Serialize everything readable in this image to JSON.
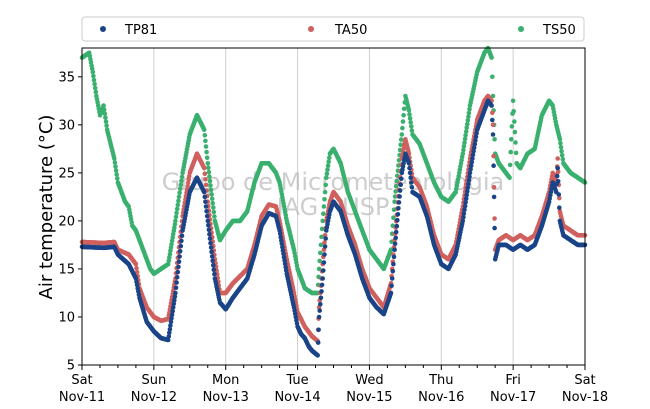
{
  "chart_data": {
    "type": "scatter",
    "ylabel": "Air temperature (°C)",
    "xlabel": "",
    "ylim": [
      5,
      38
    ],
    "xlim": [
      0,
      7
    ],
    "yticks": [
      5,
      10,
      15,
      20,
      25,
      30,
      35
    ],
    "xticks": [
      {
        "x": 0,
        "day": "Sat",
        "date": "Nov-11"
      },
      {
        "x": 1,
        "day": "Sun",
        "date": "Nov-12"
      },
      {
        "x": 2,
        "day": "Mon",
        "date": "Nov-13"
      },
      {
        "x": 3,
        "day": "Tue",
        "date": "Nov-14"
      },
      {
        "x": 4,
        "day": "Wed",
        "date": "Nov-15"
      },
      {
        "x": 5,
        "day": "Thu",
        "date": "Nov-16"
      },
      {
        "x": 6,
        "day": "Fri",
        "date": "Nov-17"
      },
      {
        "x": 7,
        "day": "Sat",
        "date": "Nov-18"
      }
    ],
    "grid": "vertical",
    "legend_position": "top",
    "watermark": [
      "Grupo de Micrometeorologia",
      "IAG - USP"
    ],
    "series": [
      {
        "name": "TP81",
        "color": "#1a4488",
        "points": [
          [
            0.0,
            17.3
          ],
          [
            0.3,
            17.2
          ],
          [
            0.45,
            17.3
          ],
          [
            0.5,
            16.5
          ],
          [
            0.65,
            15.5
          ],
          [
            0.75,
            14.0
          ],
          [
            0.8,
            12.0
          ],
          [
            0.9,
            9.5
          ],
          [
            1.0,
            8.5
          ],
          [
            1.1,
            7.8
          ],
          [
            1.2,
            7.6
          ],
          [
            1.3,
            12.5
          ],
          [
            1.4,
            19.0
          ],
          [
            1.5,
            23.0
          ],
          [
            1.6,
            24.5
          ],
          [
            1.7,
            23.0
          ],
          [
            1.75,
            20.0
          ],
          [
            1.85,
            14.0
          ],
          [
            1.92,
            11.5
          ],
          [
            2.0,
            10.8
          ],
          [
            2.1,
            12.0
          ],
          [
            2.3,
            14.0
          ],
          [
            2.4,
            16.5
          ],
          [
            2.5,
            19.5
          ],
          [
            2.6,
            20.8
          ],
          [
            2.7,
            20.5
          ],
          [
            2.75,
            19.0
          ],
          [
            2.85,
            14.5
          ],
          [
            2.95,
            11.0
          ],
          [
            3.0,
            9.0
          ],
          [
            3.05,
            8.2
          ],
          [
            3.1,
            7.8
          ],
          [
            3.15,
            7.0
          ],
          [
            3.2,
            6.5
          ],
          [
            3.28,
            6.0
          ],
          [
            3.3,
            10.0
          ],
          [
            3.35,
            14.0
          ],
          [
            3.4,
            19.0
          ],
          [
            3.45,
            21.0
          ],
          [
            3.5,
            22.0
          ],
          [
            3.6,
            21.0
          ],
          [
            3.7,
            18.5
          ],
          [
            3.8,
            16.5
          ],
          [
            3.9,
            14.0
          ],
          [
            4.0,
            12.0
          ],
          [
            4.1,
            11.0
          ],
          [
            4.2,
            10.3
          ],
          [
            4.3,
            12.5
          ],
          [
            4.35,
            17.0
          ],
          [
            4.45,
            25.0
          ],
          [
            4.5,
            27.0
          ],
          [
            4.55,
            26.0
          ],
          [
            4.6,
            23.0
          ],
          [
            4.7,
            22.5
          ],
          [
            4.8,
            20.5
          ],
          [
            4.9,
            17.5
          ],
          [
            5.0,
            15.5
          ],
          [
            5.1,
            15.0
          ],
          [
            5.2,
            16.5
          ],
          [
            5.3,
            20.0
          ],
          [
            5.4,
            25.0
          ],
          [
            5.5,
            29.5
          ],
          [
            5.6,
            31.5
          ],
          [
            5.65,
            32.5
          ],
          [
            5.7,
            32.0
          ],
          [
            5.72,
            29.0
          ],
          [
            5.75,
            16.0
          ],
          [
            5.8,
            17.5
          ],
          [
            5.9,
            17.5
          ],
          [
            6.0,
            17.0
          ],
          [
            6.1,
            17.5
          ],
          [
            6.2,
            17.0
          ],
          [
            6.3,
            17.5
          ],
          [
            6.4,
            19.5
          ],
          [
            6.5,
            22.0
          ],
          [
            6.55,
            24.0
          ],
          [
            6.6,
            23.0
          ],
          [
            6.62,
            25.5
          ],
          [
            6.65,
            20.0
          ],
          [
            6.7,
            18.5
          ],
          [
            6.8,
            18.0
          ],
          [
            6.9,
            17.5
          ],
          [
            7.0,
            17.5
          ]
        ]
      },
      {
        "name": "TA50",
        "color": "#d0605e",
        "points": [
          [
            0.0,
            17.8
          ],
          [
            0.3,
            17.7
          ],
          [
            0.45,
            17.8
          ],
          [
            0.5,
            17.0
          ],
          [
            0.65,
            16.5
          ],
          [
            0.75,
            15.5
          ],
          [
            0.8,
            13.0
          ],
          [
            0.9,
            11.0
          ],
          [
            1.0,
            10.0
          ],
          [
            1.1,
            9.6
          ],
          [
            1.2,
            9.8
          ],
          [
            1.3,
            14.0
          ],
          [
            1.4,
            20.5
          ],
          [
            1.5,
            25.0
          ],
          [
            1.6,
            27.0
          ],
          [
            1.7,
            25.5
          ],
          [
            1.75,
            22.0
          ],
          [
            1.85,
            16.0
          ],
          [
            1.92,
            12.5
          ],
          [
            2.0,
            12.5
          ],
          [
            2.1,
            13.5
          ],
          [
            2.3,
            15.0
          ],
          [
            2.4,
            17.5
          ],
          [
            2.5,
            20.5
          ],
          [
            2.6,
            21.7
          ],
          [
            2.7,
            21.5
          ],
          [
            2.75,
            20.0
          ],
          [
            2.85,
            16.0
          ],
          [
            2.95,
            12.5
          ],
          [
            3.0,
            10.5
          ],
          [
            3.1,
            9.0
          ],
          [
            3.2,
            8.0
          ],
          [
            3.28,
            7.5
          ],
          [
            3.3,
            11.0
          ],
          [
            3.35,
            15.5
          ],
          [
            3.4,
            20.0
          ],
          [
            3.45,
            22.0
          ],
          [
            3.5,
            23.0
          ],
          [
            3.6,
            22.0
          ],
          [
            3.7,
            19.5
          ],
          [
            3.8,
            17.5
          ],
          [
            3.9,
            15.0
          ],
          [
            4.0,
            13.0
          ],
          [
            4.1,
            12.0
          ],
          [
            4.2,
            11.0
          ],
          [
            4.3,
            13.5
          ],
          [
            4.35,
            18.0
          ],
          [
            4.45,
            26.5
          ],
          [
            4.5,
            28.5
          ],
          [
            4.55,
            27.0
          ],
          [
            4.6,
            24.5
          ],
          [
            4.7,
            23.5
          ],
          [
            4.8,
            21.5
          ],
          [
            4.9,
            18.5
          ],
          [
            5.0,
            16.5
          ],
          [
            5.1,
            16.0
          ],
          [
            5.2,
            17.5
          ],
          [
            5.3,
            21.5
          ],
          [
            5.4,
            26.5
          ],
          [
            5.5,
            30.5
          ],
          [
            5.6,
            32.5
          ],
          [
            5.65,
            33.0
          ],
          [
            5.7,
            32.5
          ],
          [
            5.72,
            30.0
          ],
          [
            5.75,
            17.0
          ],
          [
            5.8,
            18.0
          ],
          [
            5.9,
            18.5
          ],
          [
            6.0,
            18.0
          ],
          [
            6.1,
            18.5
          ],
          [
            6.2,
            18.0
          ],
          [
            6.3,
            18.5
          ],
          [
            6.4,
            20.5
          ],
          [
            6.5,
            23.0
          ],
          [
            6.55,
            25.0
          ],
          [
            6.6,
            24.0
          ],
          [
            6.62,
            26.5
          ],
          [
            6.65,
            21.0
          ],
          [
            6.7,
            19.5
          ],
          [
            6.8,
            19.0
          ],
          [
            6.9,
            18.5
          ],
          [
            7.0,
            18.5
          ]
        ]
      },
      {
        "name": "TS50",
        "color": "#3ab06e",
        "points": [
          [
            0.0,
            37.0
          ],
          [
            0.1,
            37.5
          ],
          [
            0.15,
            35.5
          ],
          [
            0.2,
            33.0
          ],
          [
            0.25,
            31.0
          ],
          [
            0.3,
            32.0
          ],
          [
            0.35,
            29.5
          ],
          [
            0.4,
            28.0
          ],
          [
            0.45,
            26.5
          ],
          [
            0.5,
            24.0
          ],
          [
            0.6,
            22.0
          ],
          [
            0.65,
            21.5
          ],
          [
            0.7,
            19.5
          ],
          [
            0.75,
            19.0
          ],
          [
            0.8,
            18.0
          ],
          [
            0.85,
            17.0
          ],
          [
            0.9,
            16.0
          ],
          [
            0.95,
            15.0
          ],
          [
            1.0,
            14.5
          ],
          [
            1.1,
            15.0
          ],
          [
            1.2,
            15.5
          ],
          [
            1.3,
            20.0
          ],
          [
            1.4,
            25.0
          ],
          [
            1.5,
            29.0
          ],
          [
            1.6,
            31.0
          ],
          [
            1.7,
            29.5
          ],
          [
            1.75,
            26.0
          ],
          [
            1.85,
            20.0
          ],
          [
            1.92,
            18.0
          ],
          [
            2.0,
            19.0
          ],
          [
            2.1,
            20.0
          ],
          [
            2.2,
            20.0
          ],
          [
            2.3,
            21.0
          ],
          [
            2.4,
            24.0
          ],
          [
            2.5,
            26.0
          ],
          [
            2.6,
            26.0
          ],
          [
            2.7,
            25.0
          ],
          [
            2.75,
            24.0
          ],
          [
            2.85,
            20.0
          ],
          [
            2.95,
            17.0
          ],
          [
            3.0,
            15.0
          ],
          [
            3.05,
            14.0
          ],
          [
            3.1,
            13.0
          ],
          [
            3.2,
            12.5
          ],
          [
            3.28,
            12.5
          ],
          [
            3.3,
            15.0
          ],
          [
            3.35,
            20.0
          ],
          [
            3.4,
            24.5
          ],
          [
            3.45,
            27.0
          ],
          [
            3.5,
            27.5
          ],
          [
            3.6,
            26.0
          ],
          [
            3.7,
            23.0
          ],
          [
            3.8,
            21.0
          ],
          [
            3.9,
            19.0
          ],
          [
            4.0,
            17.0
          ],
          [
            4.1,
            16.0
          ],
          [
            4.2,
            15.0
          ],
          [
            4.3,
            17.0
          ],
          [
            4.35,
            22.0
          ],
          [
            4.45,
            29.0
          ],
          [
            4.5,
            33.0
          ],
          [
            4.55,
            31.5
          ],
          [
            4.6,
            29.0
          ],
          [
            4.7,
            28.0
          ],
          [
            4.8,
            26.0
          ],
          [
            4.9,
            24.0
          ],
          [
            5.0,
            22.5
          ],
          [
            5.1,
            22.0
          ],
          [
            5.2,
            23.0
          ],
          [
            5.3,
            27.0
          ],
          [
            5.4,
            32.0
          ],
          [
            5.5,
            35.5
          ],
          [
            5.6,
            37.5
          ],
          [
            5.65,
            38.0
          ],
          [
            5.7,
            37.0
          ],
          [
            5.72,
            33.0
          ],
          [
            5.75,
            27.0
          ],
          [
            5.8,
            26.0
          ],
          [
            5.9,
            25.0
          ],
          [
            5.95,
            24.5
          ],
          [
            6.0,
            32.5
          ],
          [
            6.05,
            26.0
          ],
          [
            6.1,
            25.5
          ],
          [
            6.2,
            27.0
          ],
          [
            6.3,
            27.5
          ],
          [
            6.4,
            31.0
          ],
          [
            6.5,
            32.5
          ],
          [
            6.55,
            32.0
          ],
          [
            6.6,
            30.0
          ],
          [
            6.65,
            28.5
          ],
          [
            6.7,
            26.0
          ],
          [
            6.8,
            25.0
          ],
          [
            6.9,
            24.5
          ],
          [
            7.0,
            24.0
          ]
        ]
      }
    ]
  }
}
